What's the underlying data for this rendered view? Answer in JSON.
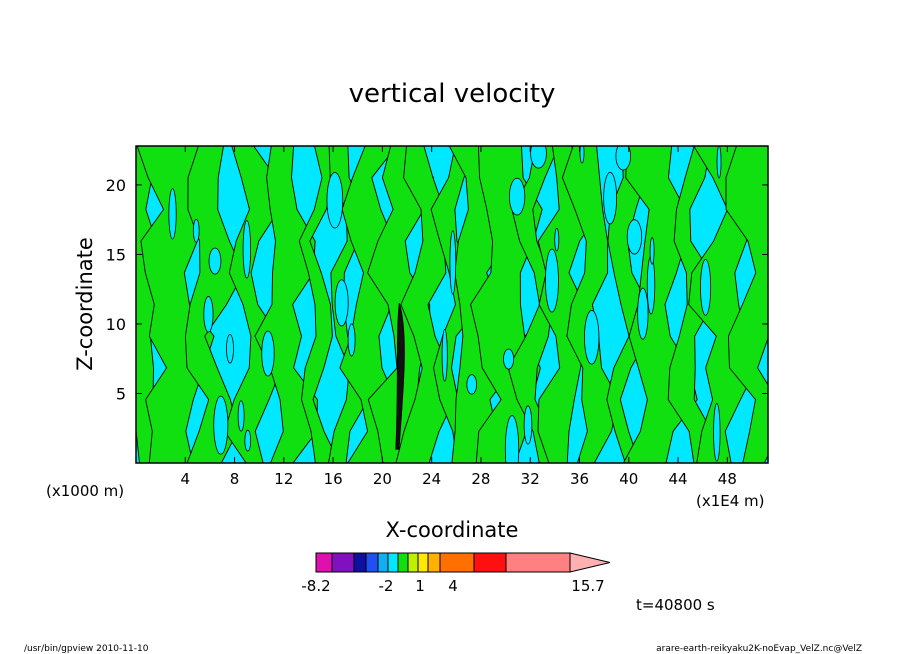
{
  "chart_data": {
    "type": "heatmap",
    "title": "vertical velocity",
    "xlabel": "X-coordinate",
    "ylabel": "Z-coordinate",
    "x_unit_left": "(x1000 m)",
    "x_unit_right": "(x1E4 m)",
    "xlim": [
      0,
      51.3
    ],
    "ylim": [
      0,
      22.8
    ],
    "x_ticks": [
      4,
      8,
      12,
      16,
      20,
      24,
      28,
      32,
      36,
      40,
      44,
      48
    ],
    "y_ticks": [
      5,
      10,
      15,
      20
    ],
    "colorbar": {
      "labels": [
        {
          "text": "-8.2",
          "value": -8.2
        },
        {
          "text": "-2",
          "value": -2
        },
        {
          "text": "1",
          "value": 1
        },
        {
          "text": "4",
          "value": 4
        },
        {
          "text": "15.7",
          "value": 15.7
        }
      ],
      "colors": [
        "#e010b0",
        "#8010c0",
        "#1010a0",
        "#2050f0",
        "#10b0f0",
        "#00e8ff",
        "#10e010",
        "#c0f000",
        "#ffe800",
        "#ffb000",
        "#ff7000",
        "#ff1010",
        "#ff8080",
        "#ffb0b0"
      ]
    },
    "dominant_fill": {
      "negative": "#00e8ff",
      "positive": "#10e010"
    },
    "updraft_core": {
      "x": 21.5,
      "z_top": 11.5,
      "color": "#111111"
    },
    "grid": false,
    "legend": "colorbar bottom"
  },
  "time_label": "t=40800 s",
  "footer_left": "/usr/bin/gpview   2010-11-10",
  "footer_right": "arare-earth-reikyaku2K-noEvap_VelZ.nc@VelZ"
}
